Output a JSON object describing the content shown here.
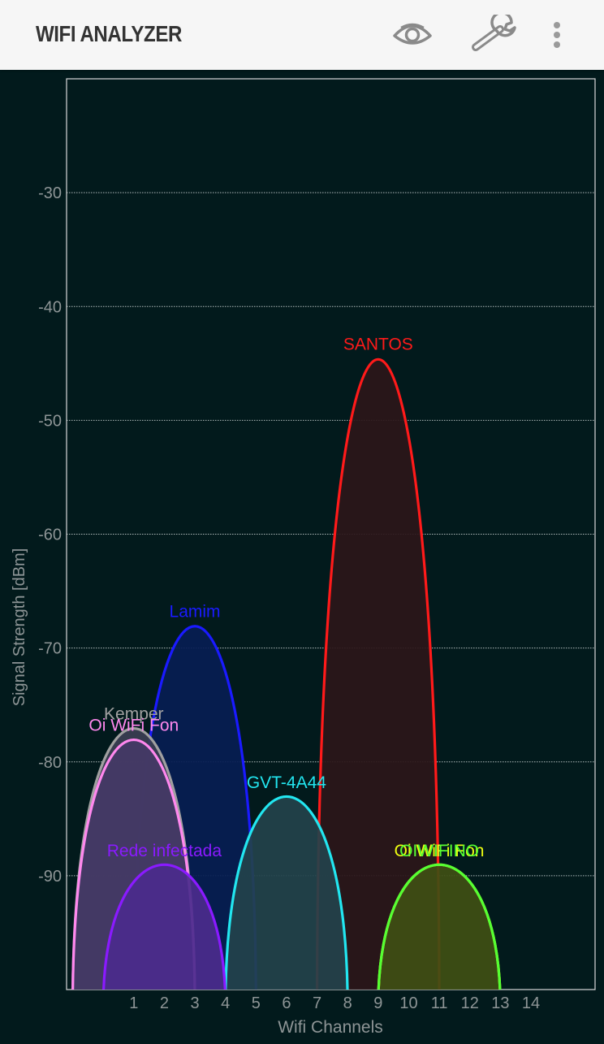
{
  "app": {
    "title": "WIFI ANALYZER",
    "icons": [
      "eye-icon",
      "wrench-icon",
      "more-vert-icon"
    ]
  },
  "chart_data": {
    "type": "area",
    "xlabel": "Wifi Channels",
    "ylabel": "Signal Strength [dBm]",
    "ylim": [
      -100,
      -20
    ],
    "xlim": [
      -1.2,
      16.1
    ],
    "yticks": [
      -30,
      -40,
      -50,
      -60,
      -70,
      -80,
      -90
    ],
    "xticks": [
      1,
      2,
      3,
      4,
      5,
      6,
      7,
      8,
      9,
      10,
      11,
      12,
      13,
      14
    ],
    "grid": true,
    "networks": [
      {
        "name": "SANTOS",
        "channel": 9,
        "signal": -44.5,
        "color": "#ff1a1a",
        "fill": "#2b1619"
      },
      {
        "name": "Lamim",
        "channel": 3,
        "signal": -68,
        "color": "#1a1aff",
        "fill": "#061d52"
      },
      {
        "name": "Kemper",
        "channel": 1,
        "signal": -77,
        "color": "#a0a0a0",
        "fill": "#3b3e52"
      },
      {
        "name": "Oi WiFi Fon",
        "channel": 1,
        "signal": -78,
        "color": "#ff88ee",
        "fill": "#443a66"
      },
      {
        "name": "GVT-4A44",
        "channel": 6,
        "signal": -83,
        "color": "#22e6f0",
        "fill": "#23424b"
      },
      {
        "name": "Rede infectada",
        "channel": 2,
        "signal": -89,
        "color": "#8a1aff",
        "fill": "#4b2b8c"
      },
      {
        "name": "Oi WiFi Fon",
        "channel": 11,
        "signal": -89,
        "color": "#eeff11",
        "fill": "#3f4f14"
      },
      {
        "name": "OIWIFINO",
        "channel": 11,
        "signal": -89,
        "color": "#55ff33",
        "fill": "#3f4f14"
      }
    ]
  }
}
